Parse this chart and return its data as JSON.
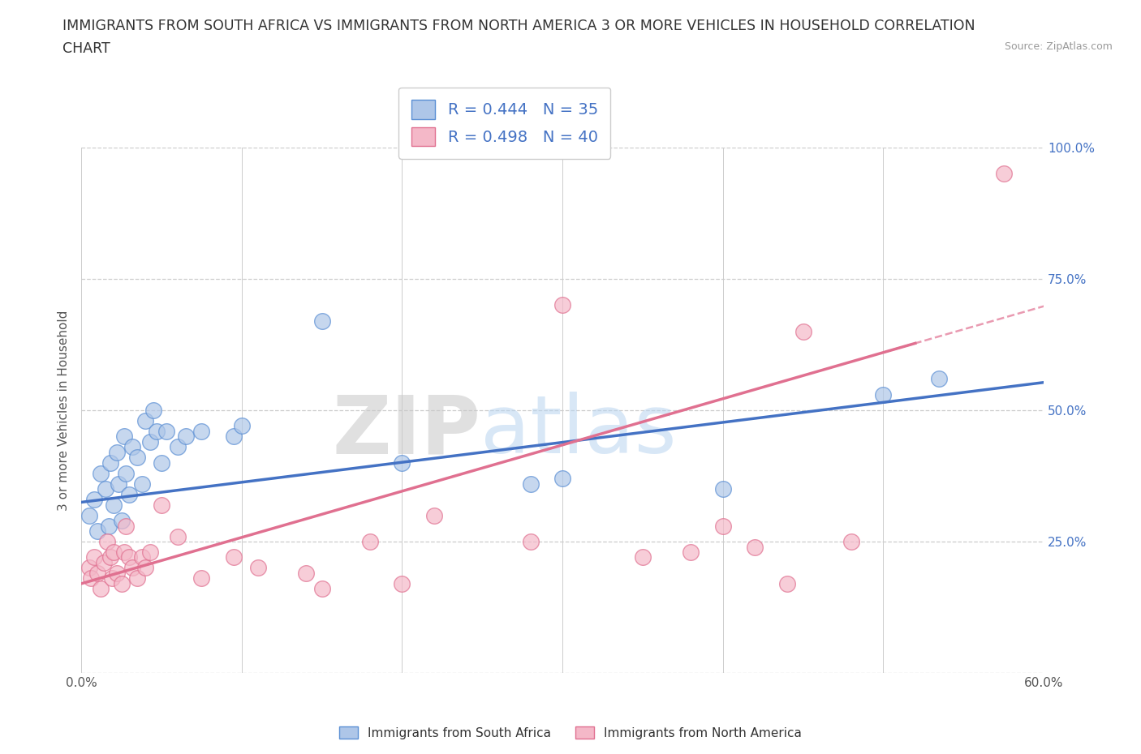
{
  "title_line1": "IMMIGRANTS FROM SOUTH AFRICA VS IMMIGRANTS FROM NORTH AMERICA 3 OR MORE VEHICLES IN HOUSEHOLD CORRELATION",
  "title_line2": "CHART",
  "source_text": "Source: ZipAtlas.com",
  "ylabel": "3 or more Vehicles in Household",
  "xlim": [
    0.0,
    0.6
  ],
  "ylim": [
    0.0,
    1.0
  ],
  "xticks": [
    0.0,
    0.1,
    0.2,
    0.3,
    0.4,
    0.5,
    0.6
  ],
  "xticklabels": [
    "0.0%",
    "",
    "",
    "",
    "",
    "",
    "60.0%"
  ],
  "yticks": [
    0.0,
    0.25,
    0.5,
    0.75,
    1.0
  ],
  "yticklabels": [
    "",
    "25.0%",
    "50.0%",
    "75.0%",
    "100.0%"
  ],
  "blue_color": "#aec6e8",
  "blue_edge_color": "#5b8fd4",
  "blue_line_color": "#4472c4",
  "pink_color": "#f4b8c8",
  "pink_edge_color": "#e07090",
  "pink_line_color": "#e07090",
  "legend_text_color": "#4472c4",
  "watermark_zip": "ZIP",
  "watermark_atlas": "atlas",
  "R_blue": 0.444,
  "N_blue": 35,
  "R_pink": 0.498,
  "N_pink": 40,
  "blue_intercept": 0.325,
  "blue_slope": 0.38,
  "pink_intercept": 0.17,
  "pink_slope": 0.88,
  "blue_x": [
    0.005,
    0.008,
    0.01,
    0.012,
    0.015,
    0.017,
    0.018,
    0.02,
    0.022,
    0.023,
    0.025,
    0.027,
    0.028,
    0.03,
    0.032,
    0.035,
    0.038,
    0.04,
    0.043,
    0.045,
    0.047,
    0.05,
    0.053,
    0.06,
    0.065,
    0.075,
    0.095,
    0.1,
    0.15,
    0.2,
    0.28,
    0.3,
    0.4,
    0.5,
    0.535
  ],
  "blue_y": [
    0.3,
    0.33,
    0.27,
    0.38,
    0.35,
    0.28,
    0.4,
    0.32,
    0.42,
    0.36,
    0.29,
    0.45,
    0.38,
    0.34,
    0.43,
    0.41,
    0.36,
    0.48,
    0.44,
    0.5,
    0.46,
    0.4,
    0.46,
    0.43,
    0.45,
    0.46,
    0.45,
    0.47,
    0.67,
    0.4,
    0.36,
    0.37,
    0.35,
    0.53,
    0.56
  ],
  "pink_x": [
    0.005,
    0.006,
    0.008,
    0.01,
    0.012,
    0.014,
    0.016,
    0.018,
    0.019,
    0.02,
    0.022,
    0.025,
    0.027,
    0.028,
    0.03,
    0.032,
    0.035,
    0.038,
    0.04,
    0.043,
    0.05,
    0.06,
    0.075,
    0.095,
    0.11,
    0.14,
    0.15,
    0.18,
    0.2,
    0.22,
    0.28,
    0.3,
    0.35,
    0.38,
    0.4,
    0.42,
    0.44,
    0.45,
    0.48,
    0.575
  ],
  "pink_y": [
    0.2,
    0.18,
    0.22,
    0.19,
    0.16,
    0.21,
    0.25,
    0.22,
    0.18,
    0.23,
    0.19,
    0.17,
    0.23,
    0.28,
    0.22,
    0.2,
    0.18,
    0.22,
    0.2,
    0.23,
    0.32,
    0.26,
    0.18,
    0.22,
    0.2,
    0.19,
    0.16,
    0.25,
    0.17,
    0.3,
    0.25,
    0.7,
    0.22,
    0.23,
    0.28,
    0.24,
    0.17,
    0.65,
    0.25,
    0.95
  ],
  "background_color": "#ffffff",
  "grid_color": "#cccccc",
  "title_fontsize": 12.5,
  "axis_label_fontsize": 11,
  "tick_fontsize": 11,
  "legend_fontsize": 14
}
